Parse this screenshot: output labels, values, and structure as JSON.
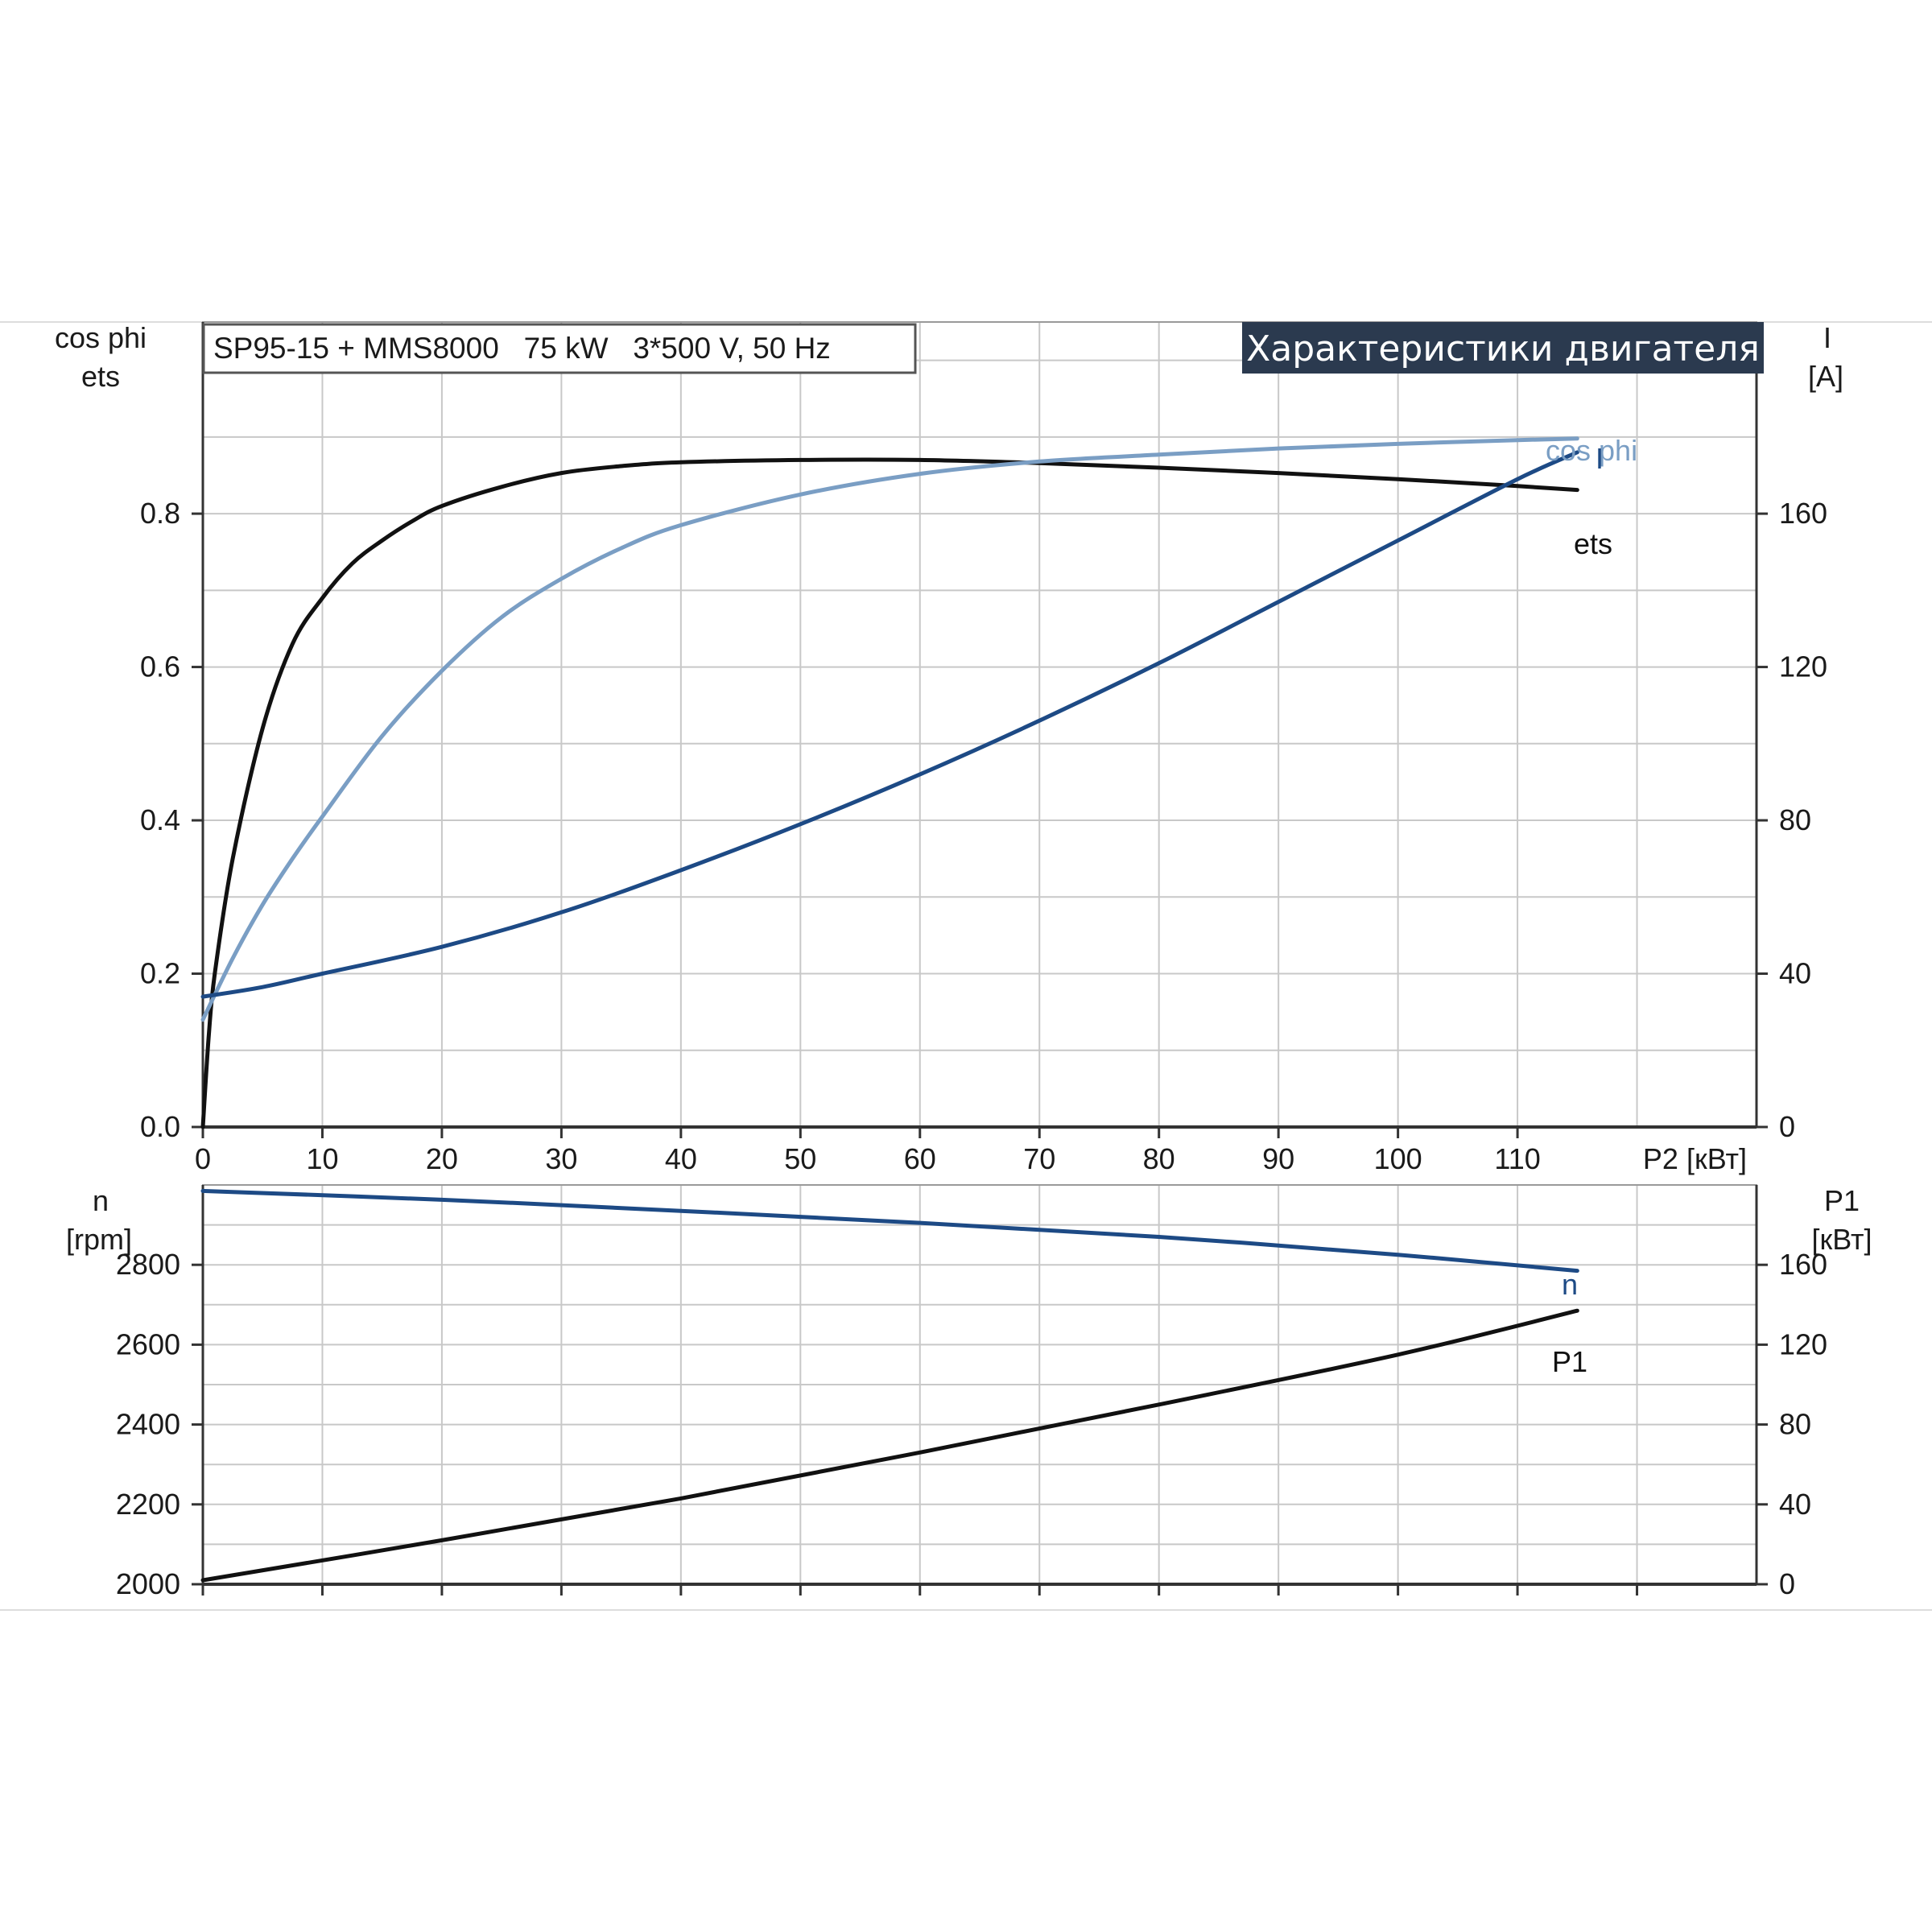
{
  "colors": {
    "black_curve": "#111111",
    "dark_blue_curve": "#1d4a85",
    "light_blue_curve": "#7a9ec4",
    "heading_bg": "#2b3a4f",
    "grid": "#c8c8c8"
  },
  "header": {
    "model_label": "SP95-15 + MMS8000   75 kW   3*500 V, 50 Hz",
    "heading": "Характеристики двигателя"
  },
  "chart_data": [
    {
      "type": "line",
      "panel": "upper",
      "x_axis": {
        "label": "P2 [кВт]",
        "ticks": [
          "0",
          "10",
          "20",
          "30",
          "40",
          "50",
          "60",
          "70",
          "80",
          "90",
          "100",
          "110"
        ],
        "range": [
          0,
          130
        ]
      },
      "y_left": {
        "label_line1": "cos phi",
        "label_line2": "ets",
        "ticks": [
          "0.0",
          "0.2",
          "0.4",
          "0.6",
          "0.8"
        ],
        "range": [
          0,
          1.05
        ]
      },
      "y_right": {
        "label_line1": "I",
        "label_line2": "[A]",
        "ticks": [
          "0",
          "40",
          "80",
          "120",
          "160"
        ],
        "range": [
          0,
          210
        ]
      },
      "grid": true,
      "series": [
        {
          "name": "ets",
          "axis": "left",
          "color_key": "black_curve",
          "x": [
            0,
            0.5,
            1,
            2.5,
            5,
            7.5,
            10,
            12.5,
            15,
            17.5,
            20,
            25,
            30,
            35,
            40,
            50,
            60,
            70,
            80,
            90,
            100,
            110,
            115
          ],
          "y": [
            0.0,
            0.12,
            0.2,
            0.35,
            0.52,
            0.63,
            0.69,
            0.735,
            0.765,
            0.79,
            0.81,
            0.835,
            0.853,
            0.862,
            0.867,
            0.87,
            0.87,
            0.866,
            0.86,
            0.853,
            0.845,
            0.836,
            0.831
          ]
        },
        {
          "name": "cos phi",
          "axis": "left",
          "color_key": "light_blue_curve",
          "x": [
            0,
            2.5,
            5,
            7.5,
            10,
            15,
            20,
            25,
            30,
            35,
            40,
            50,
            60,
            70,
            80,
            90,
            100,
            110,
            115
          ],
          "y": [
            0.14,
            0.22,
            0.29,
            0.35,
            0.405,
            0.51,
            0.595,
            0.665,
            0.715,
            0.755,
            0.785,
            0.825,
            0.852,
            0.868,
            0.877,
            0.885,
            0.891,
            0.896,
            0.898
          ]
        },
        {
          "name": "I",
          "axis": "right",
          "color_key": "dark_blue_curve",
          "x": [
            0,
            5,
            10,
            20,
            30,
            40,
            50,
            60,
            70,
            80,
            90,
            100,
            110,
            115
          ],
          "y": [
            34,
            36.5,
            40,
            47,
            56,
            67,
            79,
            92,
            106,
            121,
            137,
            153,
            169,
            176
          ]
        }
      ],
      "curve_labels": [
        "cos phi",
        "I",
        "ets"
      ]
    },
    {
      "type": "line",
      "panel": "lower",
      "x_axis": {
        "ticks": [],
        "range": [
          0,
          130
        ]
      },
      "y_left": {
        "label_line1": "n",
        "label_line2": "[rpm]",
        "ticks": [
          "2000",
          "2200",
          "2400",
          "2600",
          "2800"
        ],
        "range": [
          2000,
          3000
        ]
      },
      "y_right": {
        "label_line1": "P1",
        "label_line2": "[кВт]",
        "ticks": [
          "0",
          "40",
          "80",
          "120",
          "160"
        ],
        "range": [
          0,
          200
        ]
      },
      "grid": true,
      "series": [
        {
          "name": "n",
          "axis": "left",
          "color_key": "dark_blue_curve",
          "x": [
            0,
            20,
            40,
            60,
            80,
            100,
            115
          ],
          "y": [
            2985,
            2963,
            2935,
            2905,
            2870,
            2825,
            2785
          ]
        },
        {
          "name": "P1",
          "axis": "right",
          "color_key": "black_curve",
          "x": [
            0,
            20,
            40,
            60,
            80,
            100,
            115
          ],
          "y": [
            2,
            22,
            43,
            66,
            90,
            115,
            137
          ]
        }
      ],
      "curve_labels": [
        "n",
        "P1"
      ]
    }
  ]
}
